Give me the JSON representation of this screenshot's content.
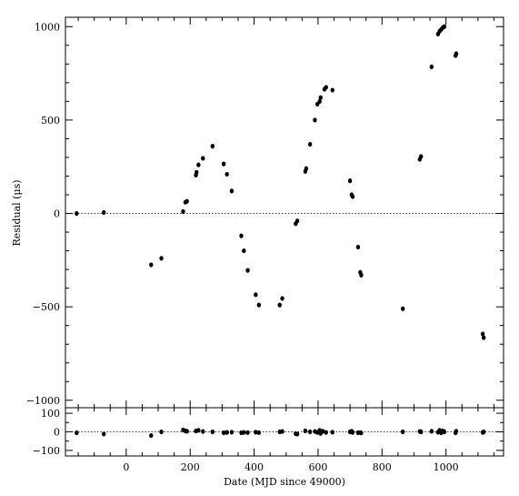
{
  "chart_data": {
    "type": "scatter",
    "xlabel": "Date (MJD since 49000)",
    "xlim": [
      -190,
      1180
    ],
    "x_ticks": [
      {
        "value": 0,
        "label": "0"
      },
      {
        "value": 200,
        "label": "200"
      },
      {
        "value": 400,
        "label": "400"
      },
      {
        "value": 600,
        "label": "600"
      },
      {
        "value": 800,
        "label": "800"
      },
      {
        "value": 1000,
        "label": "1000"
      }
    ],
    "x_minor_step": 50,
    "panels": [
      {
        "id": "main",
        "ylabel": "Residual (μs)",
        "ylim": [
          -1040,
          1050
        ],
        "y_ticks": [
          {
            "value": 1000,
            "label": "1000"
          },
          {
            "value": 500,
            "label": "500"
          },
          {
            "value": 0,
            "label": "0"
          },
          {
            "value": -500,
            "label": "−500"
          },
          {
            "value": -1000,
            "label": "−1000"
          }
        ],
        "y_minor_step": 100,
        "zero_line": "dotted",
        "points": [
          [
            -155,
            0
          ],
          [
            -70,
            5
          ],
          [
            78,
            -275
          ],
          [
            110,
            -240
          ],
          [
            178,
            10
          ],
          [
            185,
            60
          ],
          [
            190,
            65
          ],
          [
            218,
            205
          ],
          [
            220,
            220
          ],
          [
            226,
            260
          ],
          [
            240,
            295
          ],
          [
            270,
            360
          ],
          [
            305,
            265
          ],
          [
            315,
            210
          ],
          [
            330,
            120
          ],
          [
            360,
            -120
          ],
          [
            368,
            -200
          ],
          [
            380,
            -305
          ],
          [
            405,
            -435
          ],
          [
            415,
            -490
          ],
          [
            480,
            -490
          ],
          [
            488,
            -455
          ],
          [
            530,
            -55
          ],
          [
            535,
            -40
          ],
          [
            560,
            225
          ],
          [
            563,
            240
          ],
          [
            575,
            370
          ],
          [
            590,
            500
          ],
          [
            598,
            585
          ],
          [
            605,
            600
          ],
          [
            608,
            620
          ],
          [
            620,
            665
          ],
          [
            625,
            675
          ],
          [
            645,
            660
          ],
          [
            700,
            175
          ],
          [
            705,
            100
          ],
          [
            708,
            90
          ],
          [
            725,
            -180
          ],
          [
            732,
            -315
          ],
          [
            735,
            -330
          ],
          [
            865,
            -510
          ],
          [
            918,
            290
          ],
          [
            922,
            305
          ],
          [
            955,
            785
          ],
          [
            975,
            960
          ],
          [
            980,
            975
          ],
          [
            985,
            985
          ],
          [
            990,
            995
          ],
          [
            995,
            1000
          ],
          [
            1030,
            845
          ],
          [
            1032,
            855
          ],
          [
            1115,
            -645
          ],
          [
            1118,
            -665
          ]
        ]
      },
      {
        "id": "residuals",
        "ylim": [
          -130,
          130
        ],
        "y_ticks": [
          {
            "value": 100,
            "label": "100"
          },
          {
            "value": 0,
            "label": "0"
          },
          {
            "value": -100,
            "label": "−100"
          }
        ],
        "y_minor_step": 50,
        "zero_line": "dotted",
        "points": [
          [
            -155,
            -5
          ],
          [
            -70,
            -12
          ],
          [
            78,
            -20
          ],
          [
            110,
            0
          ],
          [
            178,
            10
          ],
          [
            185,
            5
          ],
          [
            190,
            3
          ],
          [
            218,
            5
          ],
          [
            226,
            8
          ],
          [
            240,
            2
          ],
          [
            270,
            0
          ],
          [
            305,
            -5
          ],
          [
            315,
            -3
          ],
          [
            330,
            -2
          ],
          [
            360,
            -5
          ],
          [
            368,
            -3
          ],
          [
            380,
            -4
          ],
          [
            405,
            -2
          ],
          [
            415,
            -4
          ],
          [
            480,
            0
          ],
          [
            488,
            2
          ],
          [
            530,
            -10
          ],
          [
            535,
            -12
          ],
          [
            560,
            5
          ],
          [
            575,
            0
          ],
          [
            590,
            2
          ],
          [
            598,
            -3
          ],
          [
            605,
            8
          ],
          [
            608,
            -8
          ],
          [
            615,
            3
          ],
          [
            625,
            -3
          ],
          [
            645,
            -2
          ],
          [
            700,
            0
          ],
          [
            705,
            3
          ],
          [
            708,
            -3
          ],
          [
            725,
            -5
          ],
          [
            732,
            -4
          ],
          [
            735,
            -6
          ],
          [
            865,
            0
          ],
          [
            918,
            2
          ],
          [
            922,
            0
          ],
          [
            955,
            3
          ],
          [
            975,
            -2
          ],
          [
            980,
            8
          ],
          [
            985,
            -5
          ],
          [
            990,
            5
          ],
          [
            995,
            0
          ],
          [
            1030,
            -5
          ],
          [
            1032,
            3
          ],
          [
            1115,
            -3
          ],
          [
            1118,
            0
          ]
        ]
      }
    ]
  }
}
